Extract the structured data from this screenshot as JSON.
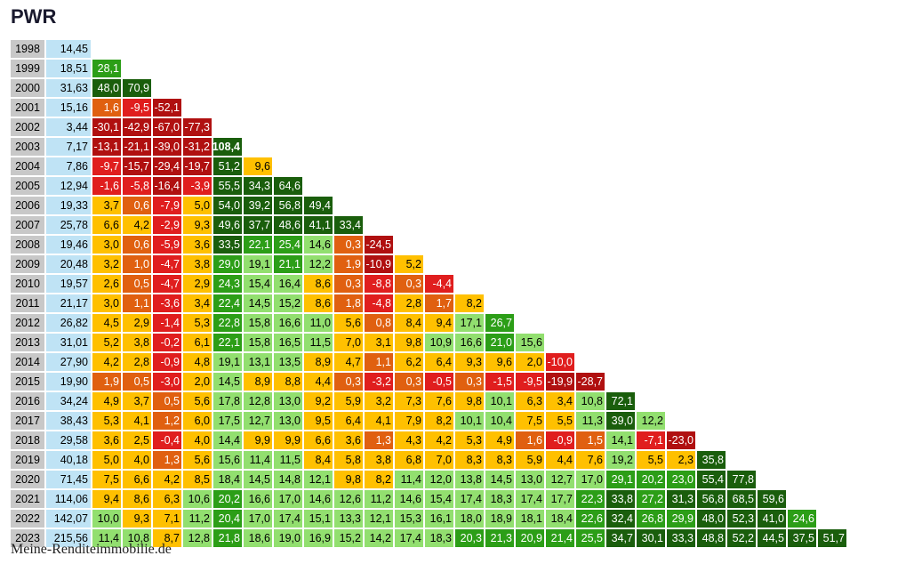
{
  "title": "PWR",
  "footer": "Meine-Renditeimmobilie.de",
  "chart_data": {
    "type": "table",
    "years": [
      1998,
      1999,
      2000,
      2001,
      2002,
      2003,
      2004,
      2005,
      2006,
      2007,
      2008,
      2009,
      2010,
      2011,
      2012,
      2013,
      2014,
      2015,
      2016,
      2017,
      2018,
      2019,
      2020,
      2021,
      2022,
      2023
    ],
    "prices": [
      "14,45",
      "18,51",
      "31,63",
      "15,16",
      "3,44",
      "7,17",
      "7,86",
      "12,94",
      "19,33",
      "25,78",
      "19,46",
      "20,48",
      "19,57",
      "21,17",
      "26,82",
      "31,01",
      "27,90",
      "19,90",
      "34,24",
      "38,43",
      "29,58",
      "40,18",
      "71,45",
      "114,06",
      "142,07",
      "215,56"
    ],
    "returns": [
      [],
      [
        "28,1"
      ],
      [
        "48,0",
        "70,9"
      ],
      [
        "1,6",
        "-9,5",
        "-52,1"
      ],
      [
        "-30,1",
        "-42,9",
        "-67,0",
        "-77,3"
      ],
      [
        "-13,1",
        "-21,1",
        "-39,0",
        "-31,2",
        "108,4"
      ],
      [
        "-9,7",
        "-15,7",
        "-29,4",
        "-19,7",
        "51,2",
        "9,6"
      ],
      [
        "-1,6",
        "-5,8",
        "-16,4",
        "-3,9",
        "55,5",
        "34,3",
        "64,6"
      ],
      [
        "3,7",
        "0,6",
        "-7,9",
        "5,0",
        "54,0",
        "39,2",
        "56,8",
        "49,4"
      ],
      [
        "6,6",
        "4,2",
        "-2,9",
        "9,3",
        "49,6",
        "37,7",
        "48,6",
        "41,1",
        "33,4"
      ],
      [
        "3,0",
        "0,6",
        "-5,9",
        "3,6",
        "33,5",
        "22,1",
        "25,4",
        "14,6",
        "0,3",
        "-24,5"
      ],
      [
        "3,2",
        "1,0",
        "-4,7",
        "3,8",
        "29,0",
        "19,1",
        "21,1",
        "12,2",
        "1,9",
        "-10,9",
        "5,2"
      ],
      [
        "2,6",
        "0,5",
        "-4,7",
        "2,9",
        "24,3",
        "15,4",
        "16,4",
        "8,6",
        "0,3",
        "-8,8",
        "0,3",
        "-4,4"
      ],
      [
        "3,0",
        "1,1",
        "-3,6",
        "3,4",
        "22,4",
        "14,5",
        "15,2",
        "8,6",
        "1,8",
        "-4,8",
        "2,8",
        "1,7",
        "8,2"
      ],
      [
        "4,5",
        "2,9",
        "-1,4",
        "5,3",
        "22,8",
        "15,8",
        "16,6",
        "11,0",
        "5,6",
        "0,8",
        "8,4",
        "9,4",
        "17,1",
        "26,7"
      ],
      [
        "5,2",
        "3,8",
        "-0,2",
        "6,1",
        "22,1",
        "15,8",
        "16,5",
        "11,5",
        "7,0",
        "3,1",
        "9,8",
        "10,9",
        "16,6",
        "21,0",
        "15,6"
      ],
      [
        "4,2",
        "2,8",
        "-0,9",
        "4,8",
        "19,1",
        "13,1",
        "13,5",
        "8,9",
        "4,7",
        "1,1",
        "6,2",
        "6,4",
        "9,3",
        "9,6",
        "2,0",
        "-10,0"
      ],
      [
        "1,9",
        "0,5",
        "-3,0",
        "2,0",
        "14,5",
        "8,9",
        "8,8",
        "4,4",
        "0,3",
        "-3,2",
        "0,3",
        "-0,5",
        "0,3",
        "-1,5",
        "-9,5",
        "-19,9",
        "-28,7"
      ],
      [
        "4,9",
        "3,7",
        "0,5",
        "5,6",
        "17,8",
        "12,8",
        "13,0",
        "9,2",
        "5,9",
        "3,2",
        "7,3",
        "7,6",
        "9,8",
        "10,1",
        "6,3",
        "3,4",
        "10,8",
        "72,1"
      ],
      [
        "5,3",
        "4,1",
        "1,2",
        "6,0",
        "17,5",
        "12,7",
        "13,0",
        "9,5",
        "6,4",
        "4,1",
        "7,9",
        "8,2",
        "10,1",
        "10,4",
        "7,5",
        "5,5",
        "11,3",
        "39,0",
        "12,2"
      ],
      [
        "3,6",
        "2,5",
        "-0,4",
        "4,0",
        "14,4",
        "9,9",
        "9,9",
        "6,6",
        "3,6",
        "1,3",
        "4,3",
        "4,2",
        "5,3",
        "4,9",
        "1,6",
        "-0,9",
        "1,5",
        "14,1",
        "-7,1",
        "-23,0"
      ],
      [
        "5,0",
        "4,0",
        "1,3",
        "5,6",
        "15,6",
        "11,4",
        "11,5",
        "8,4",
        "5,8",
        "3,8",
        "6,8",
        "7,0",
        "8,3",
        "8,3",
        "5,9",
        "4,4",
        "7,6",
        "19,2",
        "5,5",
        "2,3",
        "35,8"
      ],
      [
        "7,5",
        "6,6",
        "4,2",
        "8,5",
        "18,4",
        "14,5",
        "14,8",
        "12,1",
        "9,8",
        "8,2",
        "11,4",
        "12,0",
        "13,8",
        "14,5",
        "13,0",
        "12,7",
        "17,0",
        "29,1",
        "20,2",
        "23,0",
        "55,4",
        "77,8"
      ],
      [
        "9,4",
        "8,6",
        "6,3",
        "10,6",
        "20,2",
        "16,6",
        "17,0",
        "14,6",
        "12,6",
        "11,2",
        "14,6",
        "15,4",
        "17,4",
        "18,3",
        "17,4",
        "17,7",
        "22,3",
        "33,8",
        "27,2",
        "31,3",
        "56,8",
        "68,5",
        "59,6"
      ],
      [
        "10,0",
        "9,3",
        "7,1",
        "11,2",
        "20,4",
        "17,0",
        "17,4",
        "15,1",
        "13,3",
        "12,1",
        "15,3",
        "16,1",
        "18,0",
        "18,9",
        "18,1",
        "18,4",
        "22,6",
        "32,4",
        "26,8",
        "29,9",
        "48,0",
        "52,3",
        "41,0",
        "24,6"
      ],
      [
        "11,4",
        "10,8",
        "8,7",
        "12,8",
        "21,8",
        "18,6",
        "19,0",
        "16,9",
        "15,2",
        "14,2",
        "17,4",
        "18,3",
        "20,3",
        "21,3",
        "20,9",
        "21,4",
        "25,5",
        "34,7",
        "30,1",
        "33,3",
        "48,8",
        "52,2",
        "44,5",
        "37,5",
        "51,7"
      ]
    ],
    "color_scale": {
      "above_30": "#1a5e0c",
      "20_to_30": "#2c9e17",
      "10_to_20": "#92df6f",
      "2_to_10": "#ffc000",
      "0_to_2": "#e06010",
      "minus_10_to_0": "#e01e1e",
      "below_minus_10": "#b01010",
      "year_cell": "#c8c8c8",
      "price_cell": "#bfe3f5"
    }
  }
}
